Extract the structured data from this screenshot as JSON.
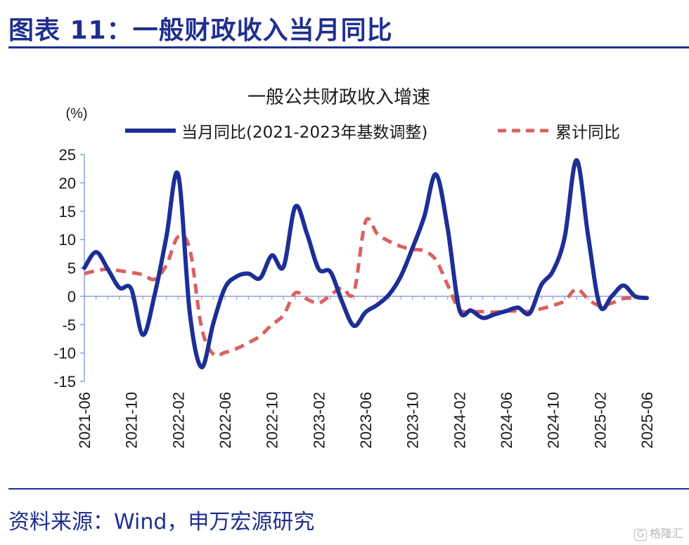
{
  "header": {
    "title": "图表 11：一般财政收入当月同比"
  },
  "footer": {
    "source": "资料来源：Wind，申万宏源研究"
  },
  "watermark": {
    "icon": "G",
    "text": "格隆汇"
  },
  "colors": {
    "brand": "#1f2f8f",
    "series_monthly": "#1c2f96",
    "series_cumulative": "#d96161",
    "axis": "#8fa0d8"
  },
  "chart_data": {
    "type": "line",
    "title": "一般公共财政收入增速",
    "ylabel": "(%)",
    "ylim": [
      -15,
      25
    ],
    "yticks": [
      25,
      20,
      15,
      10,
      5,
      0,
      -5,
      -10,
      -15
    ],
    "grid": false,
    "legend_position": "top",
    "x_tick_labels": [
      "2021-06",
      "2021-10",
      "2022-02",
      "2022-06",
      "2022-10",
      "2023-02",
      "2023-06",
      "2023-10",
      "2024-02",
      "2024-06",
      "2024-10",
      "2025-02",
      "2025-06"
    ],
    "x": [
      "2021-06",
      "2021-07",
      "2021-08",
      "2021-09",
      "2021-10",
      "2021-11",
      "2021-12",
      "2022-01",
      "2022-02",
      "2022-03",
      "2022-04",
      "2022-05",
      "2022-06",
      "2022-07",
      "2022-08",
      "2022-09",
      "2022-10",
      "2022-11",
      "2022-12",
      "2023-01",
      "2023-02",
      "2023-03",
      "2023-04",
      "2023-05",
      "2023-06",
      "2023-07",
      "2023-08",
      "2023-09",
      "2023-10",
      "2023-11",
      "2023-12",
      "2024-01",
      "2024-02",
      "2024-03",
      "2024-04",
      "2024-05",
      "2024-06",
      "2024-07",
      "2024-08",
      "2024-09",
      "2024-10",
      "2024-11",
      "2024-12",
      "2025-01",
      "2025-02",
      "2025-03",
      "2025-04",
      "2025-05",
      "2025-06"
    ],
    "series": [
      {
        "name": "当月同比(2021-2023年基数调整)",
        "style": "solid",
        "values": [
          5.0,
          7.8,
          4.8,
          1.5,
          1.3,
          -6.8,
          0.3,
          10.5,
          21.5,
          -3.0,
          -12.5,
          -4.8,
          1.5,
          3.5,
          4.0,
          3.2,
          7.2,
          5.2,
          15.8,
          11.0,
          4.8,
          4.3,
          -1.0,
          -5.2,
          -2.8,
          -1.5,
          0.3,
          3.5,
          8.5,
          14.0,
          21.5,
          12.0,
          -2.3,
          -2.5,
          -3.8,
          -3.2,
          -2.6,
          -2.0,
          -3.0,
          2.0,
          4.5,
          10.5,
          24.0,
          10.5,
          -1.7,
          0.0,
          1.9,
          0.0,
          -0.3
        ]
      },
      {
        "name": "累计同比",
        "style": "dashed",
        "values": [
          4.0,
          4.5,
          4.8,
          4.5,
          4.2,
          3.8,
          3.0,
          5.5,
          10.5,
          8.3,
          -5.5,
          -10.2,
          -9.9,
          -9.2,
          -8.2,
          -7.0,
          -5.0,
          -3.3,
          0.6,
          -0.5,
          -1.2,
          0.2,
          1.5,
          0.7,
          13.2,
          11.0,
          9.7,
          8.8,
          8.3,
          8.0,
          6.4,
          2.0,
          -2.3,
          -2.7,
          -2.7,
          -2.8,
          -2.6,
          -2.6,
          -2.7,
          -2.2,
          -1.6,
          -0.8,
          1.3,
          -0.5,
          -1.7,
          -1.2,
          -0.4,
          -0.3,
          -0.3
        ]
      }
    ]
  }
}
